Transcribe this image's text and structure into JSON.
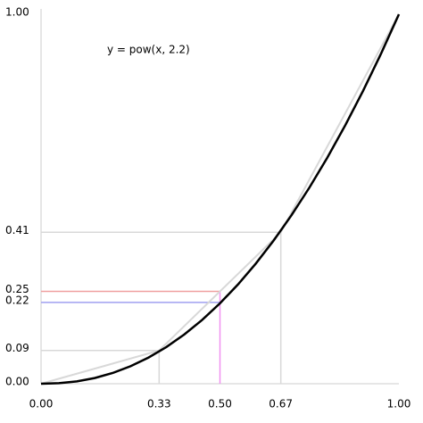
{
  "chart_data": {
    "type": "line",
    "annotation": "y = pow(x, 2.2)",
    "xlim": [
      0,
      1
    ],
    "ylim": [
      0,
      1
    ],
    "xticks": [
      {
        "value": 0,
        "label": "0.00"
      },
      0.33,
      {
        "value": 0.5,
        "label": "0.50"
      },
      0.67,
      {
        "value": 1,
        "label": "1.00"
      }
    ],
    "yticks": [
      {
        "value": 0,
        "label": "0.00"
      },
      0.09,
      0.22,
      0.25,
      0.41,
      {
        "value": 1,
        "label": "1.00"
      }
    ],
    "series": [
      {
        "color": "#d8d8d8",
        "x": [
          0,
          0.33,
          0.67,
          1
        ],
        "values": [
          0,
          0.09,
          0.41,
          1
        ]
      },
      {
        "color": "#000000",
        "x": [
          0,
          0.05,
          0.1,
          0.15,
          0.2,
          0.25,
          0.3,
          0.35,
          0.4,
          0.45,
          0.5,
          0.55,
          0.6,
          0.65,
          0.7,
          0.75,
          0.8,
          0.85,
          0.9,
          0.95,
          1
        ],
        "values": [
          0,
          0.0014,
          0.0063,
          0.0154,
          0.029,
          0.0474,
          0.0707,
          0.0993,
          0.1332,
          0.1726,
          0.2176,
          0.2684,
          0.325,
          0.3876,
          0.4563,
          0.5311,
          0.6121,
          0.6994,
          0.7931,
          0.8933,
          1
        ]
      }
    ],
    "guides": [
      {
        "x": 0.33,
        "y": 0.09,
        "hcolor": "#d8d8d8",
        "vcolor": "#d8d8d8"
      },
      {
        "x": 0.67,
        "y": 0.41,
        "hcolor": "#d8d8d8",
        "vcolor": "#d8d8d8"
      },
      {
        "x": 0.5,
        "y": 0.25,
        "hcolor": "#f0a0a0",
        "vcolor": "#f090f0",
        "label_color": "#b03030",
        "x_label_color": "#a030a0"
      },
      {
        "x": 0.5,
        "y": 0.22,
        "hcolor": "#a0a0f0",
        "label_color": "#3030b0"
      }
    ]
  }
}
